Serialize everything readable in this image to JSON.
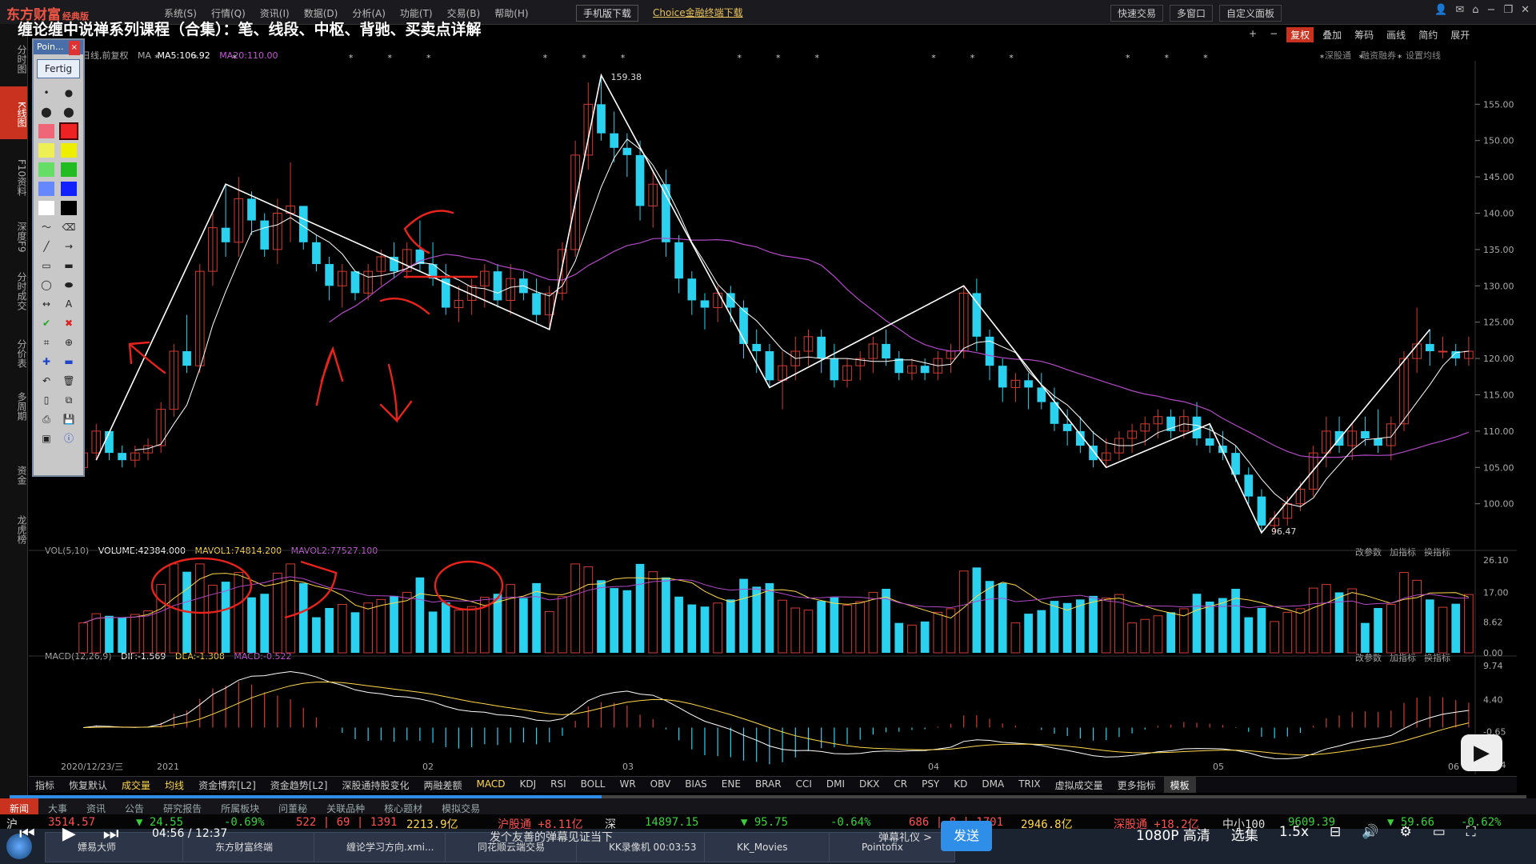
{
  "app": {
    "logo": "东方财富",
    "logo_sub": "经典版",
    "video_title": "缠论缠中说禅系列课程（合集）：笔、线段、中枢、背驰、买卖点详解",
    "menu": [
      "系统(S)",
      "行情(Q)",
      "资讯(I)",
      "数据(D)",
      "分析(A)",
      "功能(T)",
      "交易(B)",
      "帮助(H)"
    ],
    "top_buttons": {
      "mobile": "手机版下载",
      "choice": "Choice金融终端下载"
    },
    "right_buttons": [
      "快速交易",
      "多窗口",
      "自定义面板"
    ]
  },
  "left_nav": [
    "分时图",
    "K线图",
    "F10资料",
    "深度F9",
    "分时成交",
    "分价表",
    "多周期",
    "资金",
    "龙虎榜"
  ],
  "left_nav_active": "K线图",
  "paint_window": {
    "title": "Poin...",
    "close": "×",
    "confirm": "Fertig"
  },
  "chart_toolbar": [
    "+",
    "−",
    "复权",
    "叠加",
    "筹码",
    "画线",
    "简约",
    "展开"
  ],
  "chart_toolbar_secondary": [
    "深股通",
    "融资融券",
    "设置均线"
  ],
  "main_info": {
    "label": "日线,前复权",
    "ma": "MA",
    "ma5": "MA5:106.92",
    "ma20": "MA20:110.00"
  },
  "vol_info": {
    "label": "VOL(5,10)",
    "volume": "VOLUME:42384.000",
    "mavol1": "MAVOL1:74814.200",
    "mavol2": "MAVOL2:77527.100"
  },
  "macd_info": {
    "label": "MACD(12,26,9)",
    "dif": "DIF:-1.569",
    "dea": "DEA:-1.308",
    "macd": "MACD:-0.522"
  },
  "panel_buttons": [
    "改参数",
    "加指标",
    "换指标"
  ],
  "chart_data": {
    "type": "candlestick",
    "price_axis": [
      "155.00",
      "150.00",
      "145.00",
      "140.00",
      "135.00",
      "130.00",
      "125.00",
      "120.00",
      "115.00",
      "110.00",
      "105.00",
      "100.00"
    ],
    "price_range": [
      96,
      159
    ],
    "annotations": {
      "high": "159.38",
      "low": "96.47"
    },
    "vol_axis": [
      "26.10",
      "17.00",
      "8.62",
      "0.00"
    ],
    "macd_axis": [
      "9.74",
      "4.40",
      "-0.65",
      "-5.84"
    ],
    "x_labels": {
      "date": "2020/12/23/三",
      "year": "2021",
      "m02": "02",
      "m03": "03",
      "m04": "04",
      "m05": "05",
      "m06": "06"
    },
    "candles": [
      [
        105,
        108,
        104,
        107
      ],
      [
        107,
        111,
        106,
        110
      ],
      [
        110,
        110,
        106,
        107
      ],
      [
        107,
        108,
        105,
        106
      ],
      [
        106,
        108,
        105,
        107
      ],
      [
        107,
        109,
        106,
        108
      ],
      [
        108,
        114,
        107,
        113
      ],
      [
        113,
        122,
        112,
        121
      ],
      [
        121,
        126,
        118,
        119
      ],
      [
        119,
        133,
        118,
        132
      ],
      [
        132,
        140,
        130,
        138
      ],
      [
        138,
        144,
        134,
        136
      ],
      [
        136,
        145,
        134,
        142
      ],
      [
        142,
        143,
        137,
        139
      ],
      [
        139,
        140,
        134,
        135
      ],
      [
        135,
        142,
        133,
        140
      ],
      [
        140,
        147,
        136,
        141
      ],
      [
        141,
        141,
        135,
        136
      ],
      [
        136,
        137,
        132,
        133
      ],
      [
        133,
        134,
        128,
        130
      ],
      [
        130,
        133,
        127,
        132
      ],
      [
        132,
        132,
        128,
        129
      ],
      [
        129,
        133,
        128,
        132
      ],
      [
        132,
        135,
        130,
        134
      ],
      [
        134,
        136,
        131,
        132
      ],
      [
        132,
        136,
        131,
        135
      ],
      [
        135,
        139,
        132,
        133
      ],
      [
        133,
        136,
        130,
        131
      ],
      [
        131,
        133,
        126,
        127
      ],
      [
        127,
        130,
        125,
        128
      ],
      [
        128,
        131,
        126,
        130
      ],
      [
        130,
        133,
        127,
        132
      ],
      [
        132,
        133,
        127,
        128
      ],
      [
        128,
        133,
        126,
        131
      ],
      [
        131,
        132,
        128,
        129
      ],
      [
        129,
        131,
        125,
        126
      ],
      [
        126,
        130,
        124,
        129
      ],
      [
        129,
        136,
        128,
        135
      ],
      [
        135,
        150,
        134,
        148
      ],
      [
        148,
        158,
        146,
        155
      ],
      [
        155,
        159,
        150,
        151
      ],
      [
        151,
        154,
        147,
        149
      ],
      [
        149,
        151,
        145,
        148
      ],
      [
        148,
        150,
        139,
        141
      ],
      [
        141,
        146,
        138,
        144
      ],
      [
        144,
        146,
        134,
        136
      ],
      [
        136,
        137,
        129,
        131
      ],
      [
        131,
        132,
        126,
        128
      ],
      [
        128,
        129,
        124,
        127
      ],
      [
        127,
        130,
        125,
        129
      ],
      [
        129,
        130,
        125,
        127
      ],
      [
        127,
        128,
        120,
        122
      ],
      [
        122,
        124,
        118,
        121
      ],
      [
        121,
        122,
        116,
        117
      ],
      [
        117,
        121,
        113,
        119
      ],
      [
        119,
        123,
        117,
        121
      ],
      [
        121,
        124,
        119,
        123
      ],
      [
        123,
        124,
        118,
        120
      ],
      [
        120,
        122,
        116,
        117
      ],
      [
        117,
        120,
        116,
        119
      ],
      [
        119,
        121,
        117,
        120
      ],
      [
        120,
        123,
        118,
        122
      ],
      [
        122,
        124,
        119,
        120
      ],
      [
        120,
        121,
        117,
        118
      ],
      [
        118,
        120,
        117,
        119
      ],
      [
        119,
        120,
        117,
        118
      ],
      [
        118,
        121,
        117,
        120
      ],
      [
        120,
        122,
        118,
        121
      ],
      [
        121,
        130,
        120,
        129
      ],
      [
        129,
        131,
        121,
        123
      ],
      [
        123,
        124,
        117,
        119
      ],
      [
        119,
        120,
        114,
        116
      ],
      [
        116,
        118,
        114,
        117
      ],
      [
        117,
        118,
        113,
        116
      ],
      [
        116,
        118,
        113,
        114
      ],
      [
        114,
        116,
        110,
        111
      ],
      [
        111,
        113,
        108,
        110
      ],
      [
        110,
        112,
        107,
        108
      ],
      [
        108,
        110,
        105,
        106
      ],
      [
        106,
        109,
        105,
        107
      ],
      [
        107,
        110,
        106,
        109
      ],
      [
        109,
        111,
        107,
        110
      ],
      [
        110,
        112,
        108,
        111
      ],
      [
        111,
        113,
        109,
        112
      ],
      [
        112,
        113,
        109,
        110
      ],
      [
        110,
        113,
        109,
        112
      ],
      [
        112,
        114,
        108,
        109
      ],
      [
        109,
        111,
        107,
        108
      ],
      [
        108,
        110,
        106,
        107
      ],
      [
        107,
        108,
        103,
        104
      ],
      [
        104,
        105,
        100,
        101
      ],
      [
        101,
        102,
        96,
        97
      ],
      [
        97,
        99,
        96,
        98
      ],
      [
        98,
        101,
        97,
        100
      ],
      [
        100,
        103,
        99,
        102
      ],
      [
        102,
        108,
        101,
        107
      ],
      [
        107,
        112,
        105,
        110
      ],
      [
        110,
        112,
        107,
        108
      ],
      [
        108,
        111,
        106,
        110
      ],
      [
        110,
        112,
        108,
        109
      ],
      [
        109,
        113,
        107,
        108
      ],
      [
        108,
        112,
        106,
        111
      ],
      [
        111,
        121,
        110,
        120
      ],
      [
        120,
        127,
        118,
        122
      ],
      [
        122,
        124,
        119,
        121
      ],
      [
        121,
        123,
        120,
        121
      ],
      [
        121,
        122,
        119,
        120
      ],
      [
        120,
        123,
        119,
        121
      ]
    ]
  },
  "bottom_tabs": [
    "指标",
    "恢复默认",
    "成交量",
    "均线",
    "资金博弈[L2]",
    "资金趋势[L2]",
    "深股通持股变化",
    "两融差额",
    "MACD",
    "KDJ",
    "RSI",
    "BOLL",
    "WR",
    "OBV",
    "BIAS",
    "ENE",
    "BRAR",
    "CCI",
    "DMI",
    "DKX",
    "CR",
    "PSY",
    "KD",
    "DMA",
    "TRIX",
    "虚拟成交量",
    "更多指标",
    "模板"
  ],
  "bottom_active": [
    "成交量",
    "均线",
    "MACD"
  ],
  "ctrl_tabs": [
    "新闻",
    "大事",
    "资讯",
    "公告",
    "研究报告",
    "所属板块",
    "问董秘",
    "关联品种",
    "核心题材",
    "模拟交易"
  ],
  "ticker": {
    "market": "沪",
    "sh_price": "3514.57",
    "sh_change": "▼ 24.55",
    "sh_pct": "-0.69%",
    "sh_stats": "522 | 69 | 1391",
    "sh_amount": "2213.9亿",
    "hgt": "沪股通 +8.11亿",
    "sz_label": "深",
    "sz_price": "14897.15",
    "sz_change": "▼ 95.75",
    "sz_pct": "-0.64%",
    "sz_stats": "686 | 8 | 1701",
    "sz_amount": "2946.8亿",
    "sgt": "深股通 +18.2亿",
    "zxb": "中小100",
    "zxb_price": "9609.39",
    "zxb_change": "▼ 59.66",
    "zxb_pct": "-0.62%"
  },
  "player": {
    "time": "04:56 / 12:37",
    "danmu": "发个友善的弹幕见证当下",
    "danmu_gift": "弹幕礼仪 >",
    "send": "发送",
    "quality": "1080P 高清",
    "episodes": "选集",
    "speed": "1.5x"
  },
  "taskbar": [
    "嫖易大师",
    "东方财富终端",
    "缠论学习方向.xmi...",
    "同花顺云端交易",
    "KK录像机 00:03:53",
    "KK_Movies",
    "Pointofix"
  ],
  "colors": {
    "up": "#d23c32",
    "down": "#2ad2f0",
    "ma5": "#ffffff",
    "ma20": "#b44ac8",
    "accent": "#c8321e"
  }
}
